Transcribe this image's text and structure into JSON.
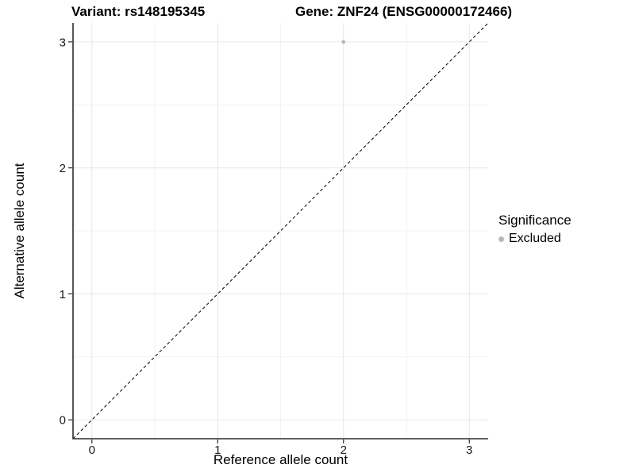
{
  "header": {
    "variant_title": "Variant: rs148195345",
    "gene_title": "Gene: ZNF24 (ENSG00000172466)"
  },
  "chart_data": {
    "type": "scatter",
    "title": "Variant: rs148195345 — Gene: ZNF24 (ENSG00000172466)",
    "xlabel": "Reference allele count",
    "ylabel": "Alternative allele count",
    "xlim": [
      -0.15,
      3.15
    ],
    "ylim": [
      -0.15,
      3.15
    ],
    "x_ticks": [
      0,
      1,
      2,
      3
    ],
    "y_ticks": [
      0,
      1,
      2,
      3
    ],
    "grid": {
      "major_color": "#e6e6e6",
      "minor_color": "#f2f2f2",
      "minor_offsets": [
        0.5,
        1.5,
        2.5
      ]
    },
    "identity_line": {
      "style": "dashed",
      "color": "#000000",
      "from": [
        -0.15,
        -0.15
      ],
      "to": [
        3.15,
        3.15
      ]
    },
    "points": [
      {
        "x": 2,
        "y": 3,
        "significance": "Excluded",
        "color": "#b8b8b8"
      }
    ],
    "axis_color": "#2b2b2b",
    "tick_label_color": "#1a1a1a"
  },
  "legend": {
    "title": "Significance",
    "items": [
      {
        "label": "Excluded",
        "marker_color": "#b8b8b8"
      }
    ]
  }
}
